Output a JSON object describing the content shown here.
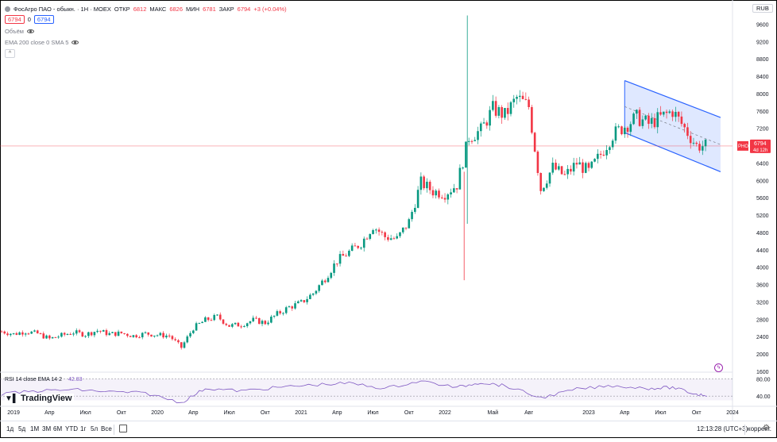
{
  "legend": {
    "symbol_title": "ФосАгро ПАО - обыкн. · 1Н · MOEX",
    "ohlc": [
      {
        "label": "ОТКР",
        "value": "6812"
      },
      {
        "label": "МАКС",
        "value": "6826"
      },
      {
        "label": "МИН",
        "value": "6781"
      },
      {
        "label": "ЗАКР",
        "value": "6794"
      }
    ],
    "change": "+3 (+0.04%)",
    "bid": "6794",
    "spread": "0",
    "ask": "6794",
    "volume_label": "Объём",
    "ema_label": "EMA 200 close 0 SMA 5",
    "collapse": "^"
  },
  "currency": "RUB",
  "price_axis": {
    "ticks": [
      "9600",
      "9200",
      "8800",
      "8400",
      "8000",
      "7600",
      "7200",
      "6800",
      "6400",
      "6000",
      "5600",
      "5200",
      "4800",
      "4400",
      "4000",
      "3600",
      "3200",
      "2800",
      "2400",
      "2000",
      "1600"
    ],
    "current_symbol": "PHOR",
    "current_price": "6794",
    "countdown": "4d 12h"
  },
  "rsi": {
    "label": "RSI 14 close EMA 14 2",
    "value": "42.83",
    "ticks": [
      "80.00",
      "40.00"
    ]
  },
  "time_axis": [
    "2019",
    "Апр",
    "Июл",
    "Окт",
    "2020",
    "Апр",
    "Июл",
    "Окт",
    "2021",
    "Апр",
    "Июл",
    "Окт",
    "2022",
    "Май",
    "Авг",
    "2023",
    "Апр",
    "Июл",
    "Окт",
    "2024"
  ],
  "logo": "TradingView",
  "timeframes": [
    "1д",
    "5д",
    "1М",
    "3М",
    "6М",
    "YTD",
    "1г",
    "5л",
    "Все"
  ],
  "clock": "12:13:28 (UTC+3)",
  "adjust_label": "коррект.",
  "colors": {
    "up": "#089981",
    "down": "#f23645",
    "channel": "#2962ff",
    "rsi": "#7e57c2"
  },
  "chart_data": {
    "type": "candlestick",
    "ylim": [
      1600,
      9900
    ],
    "x_range": [
      "2018-12",
      "2024-01"
    ],
    "close": [
      {
        "date": "2018-12",
        "value": 2520
      },
      {
        "date": "2019-01",
        "value": 2460
      },
      {
        "date": "2019-02",
        "value": 2520
      },
      {
        "date": "2019-03",
        "value": 2470
      },
      {
        "date": "2019-04",
        "value": 2350
      },
      {
        "date": "2019-05",
        "value": 2430
      },
      {
        "date": "2019-06",
        "value": 2500
      },
      {
        "date": "2019-07",
        "value": 2450
      },
      {
        "date": "2019-08",
        "value": 2540
      },
      {
        "date": "2019-09",
        "value": 2460
      },
      {
        "date": "2019-10",
        "value": 2480
      },
      {
        "date": "2019-11",
        "value": 2420
      },
      {
        "date": "2019-12",
        "value": 2470
      },
      {
        "date": "2020-01",
        "value": 2440
      },
      {
        "date": "2020-02",
        "value": 2420
      },
      {
        "date": "2020-03",
        "value": 2150
      },
      {
        "date": "2020-04",
        "value": 2600
      },
      {
        "date": "2020-05",
        "value": 2780
      },
      {
        "date": "2020-06",
        "value": 2860
      },
      {
        "date": "2020-07",
        "value": 2650
      },
      {
        "date": "2020-08",
        "value": 2680
      },
      {
        "date": "2020-09",
        "value": 2780
      },
      {
        "date": "2020-10",
        "value": 2720
      },
      {
        "date": "2020-11",
        "value": 2920
      },
      {
        "date": "2020-12",
        "value": 3080
      },
      {
        "date": "2021-01",
        "value": 3180
      },
      {
        "date": "2021-02",
        "value": 3400
      },
      {
        "date": "2021-03",
        "value": 3750
      },
      {
        "date": "2021-04",
        "value": 4150
      },
      {
        "date": "2021-05",
        "value": 4350
      },
      {
        "date": "2021-06",
        "value": 4550
      },
      {
        "date": "2021-07",
        "value": 4950
      },
      {
        "date": "2021-08",
        "value": 4700
      },
      {
        "date": "2021-09",
        "value": 4650
      },
      {
        "date": "2021-10",
        "value": 5050
      },
      {
        "date": "2021-11",
        "value": 5950
      },
      {
        "date": "2021-12",
        "value": 5750
      },
      {
        "date": "2022-01",
        "value": 5700
      },
      {
        "date": "2022-02",
        "value": 5900
      },
      {
        "date": "2022-03",
        "value": 7000
      },
      {
        "date": "2022-04",
        "value": 7150
      },
      {
        "date": "2022-05",
        "value": 7650
      },
      {
        "date": "2022-06",
        "value": 7500
      },
      {
        "date": "2022-07",
        "value": 7900
      },
      {
        "date": "2022-08",
        "value": 7700
      },
      {
        "date": "2022-09",
        "value": 5800
      },
      {
        "date": "2022-10",
        "value": 6300
      },
      {
        "date": "2022-11",
        "value": 6100
      },
      {
        "date": "2022-12",
        "value": 6400
      },
      {
        "date": "2023-01",
        "value": 6200
      },
      {
        "date": "2023-02",
        "value": 6600
      },
      {
        "date": "2023-03",
        "value": 7050
      },
      {
        "date": "2023-04",
        "value": 7250
      },
      {
        "date": "2023-05",
        "value": 7450
      },
      {
        "date": "2023-06",
        "value": 7300
      },
      {
        "date": "2023-07",
        "value": 7450
      },
      {
        "date": "2023-08",
        "value": 7600
      },
      {
        "date": "2023-09",
        "value": 7200
      },
      {
        "date": "2023-10",
        "value": 6800
      },
      {
        "date": "2023-11",
        "value": 6794
      }
    ],
    "rsi": [
      {
        "date": "2018-12",
        "value": 45
      },
      {
        "date": "2019-03",
        "value": 52
      },
      {
        "date": "2019-06",
        "value": 55
      },
      {
        "date": "2019-09",
        "value": 50
      },
      {
        "date": "2019-12",
        "value": 47
      },
      {
        "date": "2020-03",
        "value": 25
      },
      {
        "date": "2020-05",
        "value": 58
      },
      {
        "date": "2020-08",
        "value": 52
      },
      {
        "date": "2020-11",
        "value": 60
      },
      {
        "date": "2021-02",
        "value": 66
      },
      {
        "date": "2021-05",
        "value": 70
      },
      {
        "date": "2021-08",
        "value": 58
      },
      {
        "date": "2021-11",
        "value": 75
      },
      {
        "date": "2022-02",
        "value": 60
      },
      {
        "date": "2022-04",
        "value": 72
      },
      {
        "date": "2022-06",
        "value": 64
      },
      {
        "date": "2022-09",
        "value": 36
      },
      {
        "date": "2022-12",
        "value": 56
      },
      {
        "date": "2023-03",
        "value": 64
      },
      {
        "date": "2023-06",
        "value": 58
      },
      {
        "date": "2023-08",
        "value": 60
      },
      {
        "date": "2023-10",
        "value": 44
      },
      {
        "date": "2023-11",
        "value": 42.83
      }
    ],
    "rsi_ylim": [
      20,
      90
    ],
    "channel": {
      "upper": [
        {
          "date": "2023-04",
          "value": 8300
        },
        {
          "date": "2023-12",
          "value": 7450
        }
      ],
      "lower": [
        {
          "date": "2023-04",
          "value": 7100
        },
        {
          "date": "2023-12",
          "value": 6200
        }
      ]
    },
    "current_price_line": 6794
  }
}
